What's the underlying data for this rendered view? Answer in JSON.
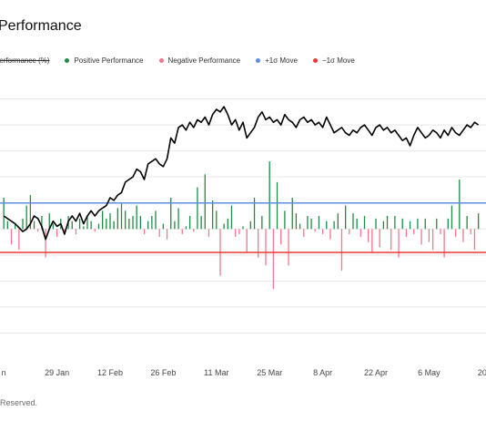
{
  "page": {
    "title": "Performance",
    "footer": "Reserved."
  },
  "colors": {
    "price_line": "#000000",
    "positive": "#1e8a45",
    "negative": "#f0778f",
    "plus_sigma": "#5b8ede",
    "minus_sigma": "#e53935",
    "grid": "#e8e8e8"
  },
  "legend": [
    {
      "label": "Performance (%)",
      "color": "#000000",
      "struck": true
    },
    {
      "label": "Positive Performance",
      "color": "#1e8a45",
      "struck": false
    },
    {
      "label": "Negative Performance",
      "color": "#f0778f",
      "struck": false
    },
    {
      "label": "+1σ Move",
      "color": "#5b8ede",
      "struck": false
    },
    {
      "label": "−1σ Move",
      "color": "#e53935",
      "struck": false
    }
  ],
  "chart_data": {
    "type": "line",
    "x_tick_labels": [
      "n",
      "29 Jan",
      "12 Feb",
      "26 Feb",
      "11 Mar",
      "25 Mar",
      "8 Apr",
      "22 Apr",
      "6 May",
      "20"
    ],
    "x_tick_day_index": [
      0,
      14,
      28,
      42,
      56,
      70,
      84,
      98,
      112,
      126
    ],
    "xlim_day_index": [
      -1,
      127
    ],
    "ylim": [
      -5,
      6
    ],
    "gridlines": [
      -4,
      -3,
      -2,
      -1,
      0,
      1,
      2,
      3,
      4,
      5
    ],
    "plus_sigma": 1.0,
    "minus_sigma": -0.9,
    "performance_line": [
      0.5,
      0.4,
      0.3,
      0.2,
      0.05,
      -0.1,
      0.0,
      0.2,
      0.5,
      0.4,
      0.1,
      -0.4,
      0.0,
      0.3,
      0.1,
      0.2,
      -0.2,
      0.3,
      0.5,
      0.3,
      0.6,
      0.2,
      0.5,
      0.7,
      0.5,
      0.7,
      0.8,
      0.9,
      1.2,
      1.1,
      1.3,
      1.4,
      1.8,
      1.9,
      2.0,
      2.3,
      2.2,
      1.9,
      2.5,
      2.6,
      2.7,
      2.5,
      2.4,
      2.7,
      3.5,
      3.3,
      3.9,
      4.0,
      3.8,
      4.1,
      3.9,
      4.2,
      4.1,
      4.3,
      4.0,
      4.4,
      4.6,
      4.5,
      4.7,
      4.4,
      4.0,
      4.2,
      3.8,
      4.1,
      3.5,
      3.7,
      3.9,
      4.3,
      4.5,
      4.2,
      4.3,
      4.1,
      4.2,
      4.0,
      4.4,
      4.2,
      4.1,
      3.9,
      4.2,
      4.3,
      4.1,
      4.2,
      4.0,
      4.1,
      3.9,
      4.3,
      4.0,
      3.7,
      3.8,
      3.9,
      3.7,
      3.6,
      3.8,
      3.7,
      3.9,
      4.0,
      3.8,
      3.6,
      3.9,
      4.0,
      3.8,
      3.9,
      3.7,
      3.8,
      3.6,
      3.4,
      3.5,
      3.2,
      3.6,
      3.9,
      3.7,
      3.5,
      3.6,
      3.8,
      3.7,
      3.5,
      3.8,
      3.6,
      3.9,
      3.7,
      3.6,
      3.8,
      4.0,
      3.9,
      4.1,
      4.0
    ],
    "daily_moves": [
      1.2,
      0.3,
      -0.6,
      0.2,
      -0.8,
      0.4,
      0.9,
      1.3,
      0.3,
      -0.1,
      0.5,
      -1.1,
      0.6,
      0.2,
      -0.3,
      0.4,
      -0.1,
      0.5,
      0.3,
      -0.2,
      0.4,
      0.1,
      0.5,
      0.3,
      -0.1,
      0.2,
      0.7,
      0.4,
      0.6,
      0.3,
      0.8,
      1.0,
      0.7,
      0.4,
      0.5,
      0.9,
      0.5,
      -0.2,
      0.3,
      0.5,
      0.7,
      -0.3,
      0.2,
      -0.4,
      1.2,
      0.3,
      0.8,
      -0.2,
      0.1,
      0.5,
      -0.1,
      1.6,
      0.5,
      2.1,
      -0.3,
      1.1,
      0.7,
      -1.8,
      0.2,
      0.4,
      0.9,
      -0.3,
      -0.2,
      0.1,
      -0.9,
      0.3,
      1.2,
      -1.1,
      0.5,
      -1.4,
      2.6,
      -2.3,
      1.8,
      -0.6,
      0.7,
      -1.4,
      1.2,
      0.6,
      0.2,
      -0.3,
      0.5,
      0.4,
      -0.1,
      0.5,
      -0.2,
      0.3,
      -0.4,
      0.3,
      0.6,
      -1.6,
      0.9,
      -0.2,
      0.6,
      0.4,
      -0.3,
      0.5,
      -0.5,
      -0.9,
      0.4,
      -0.7,
      0.3,
      0.5,
      -0.8,
      0.5,
      -1.1,
      0.4,
      -0.3,
      0.3,
      -0.2,
      0.4,
      -0.6,
      0.4,
      -0.5,
      -0.8,
      0.4,
      -0.2,
      -1.1,
      0.4,
      0.9,
      -0.3,
      1.9,
      -0.5,
      0.5,
      -0.2,
      -0.8,
      0.6
    ],
    "title": "",
    "xlabel": "",
    "ylabel": "",
    "grid": true,
    "legend_position": "top-left"
  }
}
